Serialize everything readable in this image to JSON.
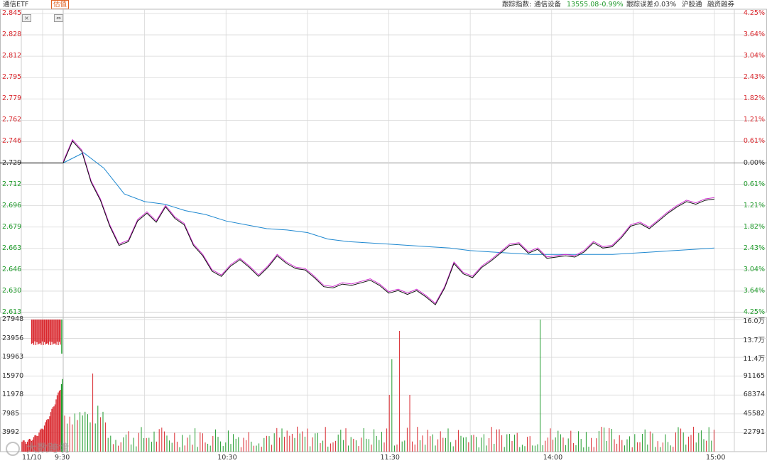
{
  "header": {
    "etf_name": "通信ETF",
    "estimate_badge": "估值",
    "tracking_index_label": "跟踪指数:",
    "tracking_index_name": "通信设备",
    "index_value": "13555.08",
    "index_change": "-0.99%",
    "tracking_error_label": "跟踪误差:",
    "tracking_error_value": "0.03%",
    "tag_hgt": "沪股通",
    "tag_margin": "融资融券"
  },
  "controls": {
    "close": "×",
    "expand": "⇔"
  },
  "price_axis": {
    "left": [
      "2.845",
      "2.828",
      "2.812",
      "2.795",
      "2.779",
      "2.762",
      "2.746",
      "2.729",
      "2.712",
      "2.696",
      "2.679",
      "2.663",
      "2.646",
      "2.630",
      "2.613"
    ],
    "right": [
      "4.25%",
      "3.64%",
      "3.04%",
      "2.43%",
      "1.82%",
      "1.21%",
      "0.61%",
      "0.00%",
      "0.61%",
      "1.21%",
      "1.82%",
      "2.43%",
      "3.04%",
      "3.64%",
      "4.25%"
    ]
  },
  "volume_axis": {
    "left": [
      "27948",
      "23956",
      "19963",
      "15970",
      "11978",
      "7985",
      "3992"
    ],
    "right": [
      "16.0万",
      "13.7万",
      "11.4万",
      "91165",
      "68374",
      "45582",
      "22791"
    ]
  },
  "time_axis": [
    "11/10",
    "9:30",
    "10:30",
    "11:30",
    "14:00",
    "15:00"
  ],
  "watermark": "大数跨境",
  "colors": {
    "up": "#d9262c",
    "down": "#1e9a2a",
    "price": "#111111",
    "iopv": "#d030d0",
    "avg": "#1e88d0",
    "grid": "#d8d8d8"
  },
  "chart_data": {
    "type": "line",
    "prev_close": 2.729,
    "ylim": [
      2.613,
      2.845
    ],
    "x_ticks": [
      "9:30",
      "10:30",
      "11:30",
      "14:00",
      "15:00"
    ],
    "series": [
      {
        "name": "price",
        "values": [
          2.729,
          2.746,
          2.738,
          2.714,
          2.7,
          2.68,
          2.665,
          2.668,
          2.684,
          2.69,
          2.683,
          2.695,
          2.686,
          2.681,
          2.665,
          2.657,
          2.645,
          2.641,
          2.649,
          2.654,
          2.648,
          2.641,
          2.648,
          2.657,
          2.651,
          2.647,
          2.646,
          2.64,
          2.633,
          2.632,
          2.635,
          2.634,
          2.636,
          2.638,
          2.634,
          2.628,
          2.63,
          2.627,
          2.63,
          2.625,
          2.619,
          2.632,
          2.651,
          2.643,
          2.64,
          2.648,
          2.653,
          2.659,
          2.665,
          2.666,
          2.659,
          2.662,
          2.655,
          2.656,
          2.657,
          2.656,
          2.66,
          2.667,
          2.663,
          2.664,
          2.671,
          2.68,
          2.682,
          2.678,
          2.684,
          2.69,
          2.695,
          2.699,
          2.697,
          2.7,
          2.701
        ]
      },
      {
        "name": "avg",
        "values": [
          2.729,
          2.737,
          2.725,
          2.705,
          2.699,
          2.697,
          2.692,
          2.689,
          2.684,
          2.681,
          2.678,
          2.677,
          2.675,
          2.67,
          2.668,
          2.667,
          2.666,
          2.665,
          2.664,
          2.663,
          2.661,
          2.66,
          2.659,
          2.658,
          2.658,
          2.658,
          2.658,
          2.658,
          2.659,
          2.66,
          2.661,
          2.662,
          2.663
        ]
      }
    ]
  }
}
